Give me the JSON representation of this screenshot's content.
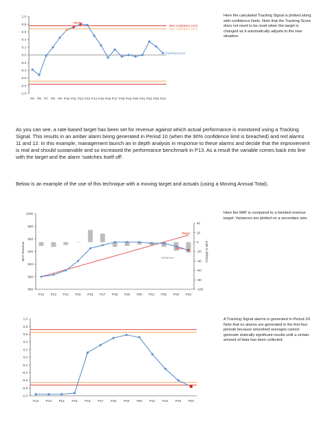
{
  "notes": {
    "chart1": "Here the calculated Tracking Signal is plotted along with confidence limits. Note that the Tracking Score does not need to be reset when the target is changed as it automatically adjusts to the new situation.",
    "chart2": "Here the MAT is compared to a trended revenue target. Variances are plotted on a secondary axis.",
    "chart3": "A Tracking Signal alarms is generated in Period 24. Note that no alarms are generated in the first four periods because smoothed averages cannot generate statically significant results until a certain amount of data has been collected."
  },
  "paragraphs": {
    "p1": "As you can see, a rate-based target has been set for revenue against which actual performance is monitored using a Tracking Signal. This results in an amber alarm being generated in Period 10 (when the 90% confidence limit is breached) and red alarms 11 and 12. In this example, management launch an in depth analysis in response to these alarms and decide that the improvement is real and should sustainable and so increased the performance benchmark in P13. As a result the variable comes back into line with the target and the alarm 'switches itself off'.",
    "p2": "Below is an example of the use of this technique with a moving target and actuals (using a Moving Annual Total)."
  },
  "colors": {
    "line": "#5b8fcb",
    "red": "#d9261c",
    "orange": "#f0a050",
    "bar": "#bdbdbd",
    "grid": "#333333"
  },
  "chart_data": [
    {
      "type": "line",
      "x": [
        "P5",
        "P6",
        "P7",
        "P8",
        "P9",
        "P10",
        "P11",
        "P12",
        "P13",
        "P14",
        "P15",
        "P16",
        "P17",
        "P18",
        "P19",
        "P20",
        "P21",
        "P22",
        "P23",
        "P24"
      ],
      "series": [
        {
          "name": "Tracking Score",
          "values": [
            -0.38,
            -0.52,
            -0.02,
            0.2,
            0.45,
            0.65,
            0.72,
            0.8,
            0.78,
            0.5,
            0.25,
            -0.07,
            0.14,
            -0.04,
            0.0,
            -0.04,
            0.0,
            0.35,
            0.22,
            0.05
          ]
        }
      ],
      "limits": {
        "red_upper": 0.76,
        "amber_upper": 0.68,
        "red_lower": -0.76,
        "amber_lower": -0.68
      },
      "limit_labels": {
        "red": "95% Confidence Limit",
        "amber": "90% Confidence Limit"
      },
      "annotations": {
        "alarms": "Alarms"
      },
      "alarm_points": {
        "amber": [
          5
        ],
        "red": [
          6,
          7
        ]
      },
      "yticks": [
        "1.0",
        "0.8",
        "0.6",
        "0.4",
        "0.2",
        "0.0",
        "-0.2",
        "-0.4",
        "-0.6",
        "-0.8",
        "-1.0"
      ],
      "ylim": [
        -1.0,
        1.0
      ]
    },
    {
      "type": "line",
      "x": [
        "P12",
        "P13",
        "P14",
        "P15",
        "P16",
        "P17",
        "P18",
        "P19",
        "P20",
        "P21",
        "P22",
        "P23",
        "P24"
      ],
      "series": [
        {
          "name": "MAT Revenue",
          "values": [
            900,
            903,
            910,
            925,
            945,
            950,
            955,
            955,
            955,
            953,
            953,
            948,
            942
          ]
        },
        {
          "name": "Target",
          "values": [
            900,
            905.5,
            911,
            916.5,
            922,
            927.5,
            933,
            938.5,
            944,
            949.5,
            955,
            960.5,
            966
          ]
        },
        {
          "name": "Variances",
          "values": [
            8,
            10,
            6,
            0,
            26,
            18,
            10,
            8,
            5,
            6,
            10,
            18,
            22
          ]
        }
      ],
      "annotations": {
        "target": "Target",
        "alarm": "Alarm",
        "variances": "Variances"
      },
      "ylabel": "MAT Revenue",
      "y2label": "Change in MAT",
      "yticks": [
        "1000",
        "980",
        "960",
        "940",
        "920",
        "900",
        "880"
      ],
      "y2ticks": [
        "40",
        "20",
        "0",
        "-20",
        "-40",
        "-60",
        "-80",
        "-100"
      ],
      "ylim": [
        880,
        1000
      ],
      "y2lim": [
        -100,
        50
      ]
    },
    {
      "type": "line",
      "x": [
        "P12",
        "P13",
        "P14",
        "P15",
        "P16",
        "P17",
        "P18",
        "P19",
        "P20",
        "P21",
        "P22",
        "P23",
        "P24"
      ],
      "series": [
        {
          "name": "Tracking Signal",
          "values": [
            -0.96,
            -0.96,
            -0.96,
            -0.93,
            0.12,
            0.32,
            0.5,
            0.58,
            0.52,
            0.08,
            -0.3,
            -0.6,
            -0.76
          ]
        }
      ],
      "limits": {
        "red_upper": 0.72,
        "amber_upper": 0.65,
        "red_lower": -0.72,
        "amber_lower": -0.65
      },
      "alarm_points": {
        "red": [
          12
        ]
      },
      "yticks": [
        "1.0",
        "0.8",
        "0.6",
        "0.4",
        "0.2",
        "0.0",
        "-0.2",
        "-0.4",
        "-0.6",
        "-0.8",
        "-1.0"
      ],
      "ylim": [
        -1.0,
        1.0
      ]
    }
  ]
}
